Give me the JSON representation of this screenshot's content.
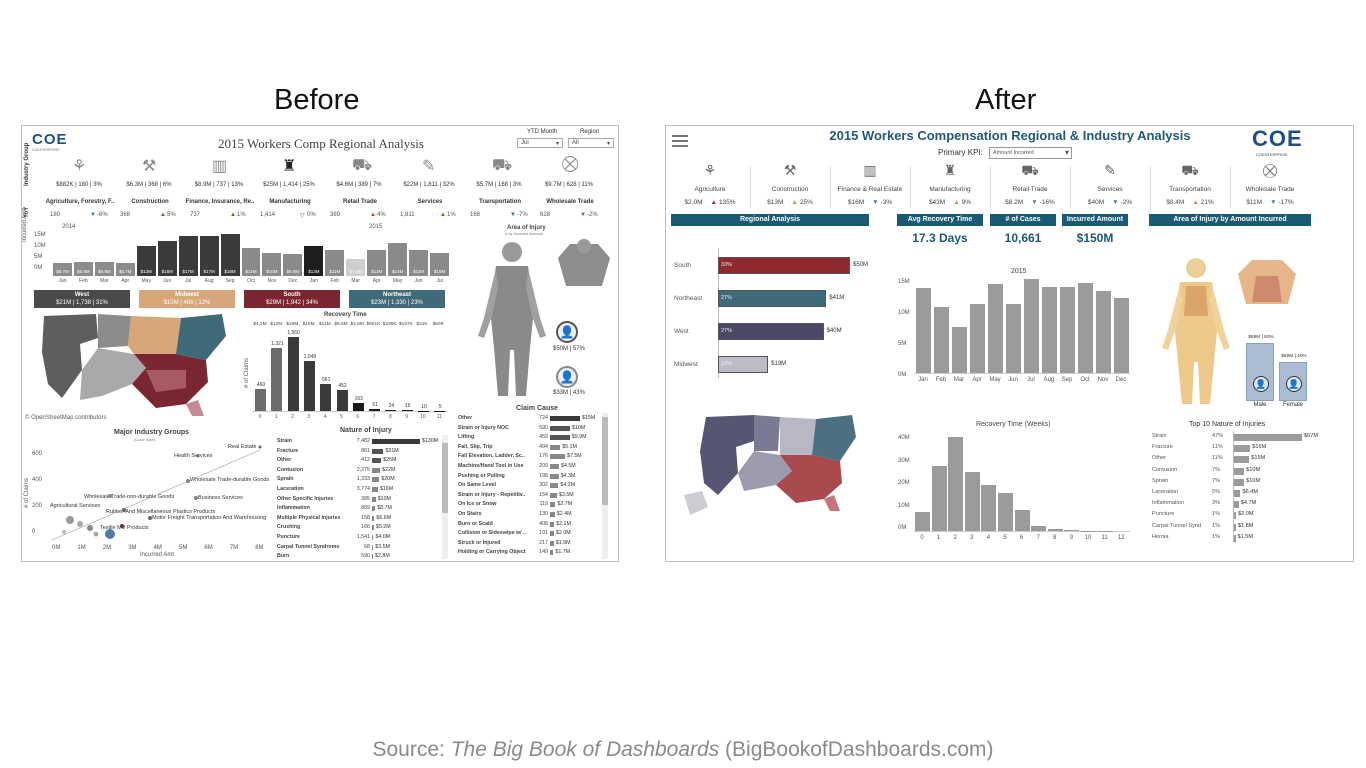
{
  "headings": {
    "before": "Before",
    "after": "After"
  },
  "source": {
    "prefix": "Source: ",
    "book": "The Big Book of Dashboards",
    "suffix": " (BigBookofDashboards.com)"
  },
  "colors": {
    "west": "#4a4a4a",
    "midwest": "#d7a77a",
    "south": "#7a2732",
    "northeast": "#3f6a7a",
    "accent": "#1a5a75"
  },
  "before": {
    "logo": "COE",
    "logo_sub": "COENTERPRISE",
    "title": "2015 Workers Comp Regional Analysis",
    "ytd_label": "YTD Month",
    "ytd_value": "Jul",
    "region_label": "Region",
    "region_value": "All",
    "side_label_1": "Industry Group",
    "side_label_2": "YoY",
    "industries": [
      {
        "icon": "⚘",
        "stat": "$882K | 180 | 3%",
        "name": "Agriculture, Forestry, F..",
        "prev": "180",
        "arrow": "▼",
        "pct": "-6%"
      },
      {
        "icon": "⚒",
        "stat": "$6.3M | 368 | 6%",
        "name": "Construction",
        "prev": "368",
        "arrow": "▲",
        "pct": "5%"
      },
      {
        "icon": "▥",
        "stat": "$8.9M | 737 | 13%",
        "name": "Finance, Insurance, Re..",
        "prev": "737",
        "arrow": "▲",
        "pct": "1%"
      },
      {
        "icon": "♜",
        "stat": "$25M | 1,414 | 25%",
        "name": "Manufacturing",
        "prev": "1,414",
        "arrow": "▽",
        "pct": "0%"
      },
      {
        "icon": "⛟",
        "stat": "$4.6M | 389 | 7%",
        "name": "Retail Trade",
        "prev": "389",
        "arrow": "▲",
        "pct": "4%"
      },
      {
        "icon": "✎",
        "stat": "$22M | 1,811 | 32%",
        "name": "Services",
        "prev": "1,811",
        "arrow": "▲",
        "pct": "1%"
      },
      {
        "icon": "⛟",
        "stat": "$5.7M | 168 | 3%",
        "name": "Transportation",
        "prev": "168",
        "arrow": "▼",
        "pct": "-7%"
      },
      {
        "icon": "⛒",
        "stat": "$9.7M | 628 | 11%",
        "name": "Wholesale Trade",
        "prev": "628",
        "arrow": "▼",
        "pct": "-2%"
      }
    ],
    "timeline": {
      "y_ticks": [
        "15M",
        "10M",
        "5M",
        "0M"
      ],
      "ylabel": "Incurred Amt",
      "year_2014": "2014",
      "year_2015": "2015",
      "months": [
        "Jan",
        "Feb",
        "Mar",
        "Apr",
        "May",
        "Jun",
        "Jul",
        "Aug",
        "Sep",
        "Oct",
        "Nov",
        "Dec",
        "Jan",
        "Feb",
        "Mar",
        "Apr",
        "May",
        "Jun",
        "Jul"
      ],
      "values": [
        5.7,
        5.9,
        5.9,
        5.7,
        13,
        15,
        17,
        17,
        18,
        12,
        10,
        9.6,
        13,
        11,
        7.4,
        11,
        14,
        11,
        10
      ],
      "labels": [
        "$5.7M",
        "$5.9M",
        "$5.9M",
        "$5.7M",
        "$13M",
        "$15M",
        "$17M",
        "$17M",
        "$18M",
        "$12M",
        "$10M",
        "$9.6M",
        "$13M",
        "$11M",
        "$7.4M",
        "$11M",
        "$14M",
        "$11M",
        "$10M"
      ]
    },
    "regions": [
      {
        "name": "West",
        "stat": "$21M | 1,738 | 31%"
      },
      {
        "name": "Midwest",
        "stat": "$10M | 486 | 12%"
      },
      {
        "name": "South",
        "stat": "$29M | 1,942 | 34%"
      },
      {
        "name": "Northeast",
        "stat": "$23M | 1,330 | 23%"
      }
    ],
    "area_title": "Area of Injury",
    "area_sub": "# by Incurred Amount",
    "map_credit": "© OpenStreetMap contributors",
    "recovery": {
      "title": "Recovery Time",
      "top_labels": [
        "$4.2M",
        "$12M",
        "$26M",
        "$15M",
        "$11M",
        "$8.6M",
        "$4.8M",
        "$901K",
        "$336K",
        "$197K",
        "$31K",
        "$60K"
      ],
      "ylabel": "# of Claims",
      "x": [
        "0",
        "1",
        "2",
        "3",
        "4",
        "5",
        "6",
        "7",
        "8",
        "9",
        "10",
        "11"
      ],
      "values": [
        460,
        1321,
        1560,
        1049,
        561,
        452,
        163,
        51,
        24,
        16,
        10,
        5
      ],
      "labels": [
        "460",
        "1,321",
        "1,560",
        "1,049",
        "561",
        "452",
        "163",
        "51",
        "24",
        "16",
        "10",
        "5"
      ]
    },
    "gender": [
      {
        "stat": "$50M | 57%"
      },
      {
        "stat": "$33M | 43%"
      }
    ],
    "scatter": {
      "title": "Major Industry Groups",
      "subtitle": "(Color Size)",
      "ylabel": "# of Claims",
      "xlabel": "Incurred Amt",
      "y_ticks": [
        "600",
        "400",
        "200",
        "0"
      ],
      "x_ticks": [
        "0M",
        "1M",
        "2M",
        "3M",
        "4M",
        "5M",
        "6M",
        "7M",
        "8M"
      ],
      "labels": [
        "Real Estate",
        "Health Services",
        "Wholesale Trade-durable Goods",
        "Wholesale Trade-non-durable Goods",
        "Business Services",
        "Agricultural Services",
        "Rubber And Miscellaneous Plastics Products",
        "Motor Freight Transportation And Warehousing",
        "Textile Mill Products"
      ]
    },
    "nature": {
      "title": "Nature of Injury",
      "rows": [
        {
          "name": "Strain",
          "count": "7,482",
          "amt": "$130M",
          "v": 130
        },
        {
          "name": "Fracture",
          "count": "861",
          "amt": "$31M",
          "v": 31
        },
        {
          "name": "Other",
          "count": "412",
          "amt": "$25M",
          "v": 25
        },
        {
          "name": "Contusion",
          "count": "2,275",
          "amt": "$22M",
          "v": 22
        },
        {
          "name": "Sprain",
          "count": "1,333",
          "amt": "$20M",
          "v": 20
        },
        {
          "name": "Laceration",
          "count": "3,774",
          "amt": "$16M",
          "v": 16
        },
        {
          "name": "Other Specific Injuries",
          "count": "385",
          "amt": "$10M",
          "v": 10
        },
        {
          "name": "Inflammation",
          "count": "869",
          "amt": "$8.7M",
          "v": 8.7
        },
        {
          "name": "Multiple Physical Injuries",
          "count": "158",
          "amt": "$6.6M",
          "v": 6.6
        },
        {
          "name": "Crushing",
          "count": "166",
          "amt": "$5.2M",
          "v": 5.2
        },
        {
          "name": "Puncture",
          "count": "1,541",
          "amt": "$4.0M",
          "v": 4.0
        },
        {
          "name": "Carpal Tunnel Syndrome",
          "count": "68",
          "amt": "$3.5M",
          "v": 3.5
        },
        {
          "name": "Burn",
          "count": "590",
          "amt": "$2.8M",
          "v": 2.8
        }
      ]
    },
    "claim": {
      "title": "Claim Cause",
      "rows": [
        {
          "name": "Other",
          "count": "724",
          "amt": "$15M",
          "v": 15
        },
        {
          "name": "Strain or Injury NOC",
          "count": "590",
          "amt": "$10M",
          "v": 10
        },
        {
          "name": "Lifting",
          "count": "459",
          "amt": "$9.9M",
          "v": 9.9
        },
        {
          "name": "Fall, Slip, Trip",
          "count": "494",
          "amt": "$5.1M",
          "v": 5.1
        },
        {
          "name": "Fall Elevation, Ladder, Sc..",
          "count": "176",
          "amt": "$7.5M",
          "v": 7.5
        },
        {
          "name": "Machine/Hand Tool in Use",
          "count": "209",
          "amt": "$4.5M",
          "v": 4.5
        },
        {
          "name": "Pushing or Pulling",
          "count": "198",
          "amt": "$4.3M",
          "v": 4.3
        },
        {
          "name": "On Same Level",
          "count": "302",
          "amt": "$4.2M",
          "v": 4.2
        },
        {
          "name": "Strain or Injury - Repetitiv..",
          "count": "154",
          "amt": "$3.5M",
          "v": 3.5
        },
        {
          "name": "On Ice or Snow",
          "count": "119",
          "amt": "$2.7M",
          "v": 2.7
        },
        {
          "name": "On Stairs",
          "count": "130",
          "amt": "$2.4M",
          "v": 2.4
        },
        {
          "name": "Burn or Scald",
          "count": "408",
          "amt": "$2.1M",
          "v": 2.1
        },
        {
          "name": "Collision or Sideswipe w/ ..",
          "count": "101",
          "amt": "$2.0M",
          "v": 2.0
        },
        {
          "name": "Struck or Injured",
          "count": "217",
          "amt": "$1.9M",
          "v": 1.9
        },
        {
          "name": "Holding or Carrying Object",
          "count": "149",
          "amt": "$1.7M",
          "v": 1.7
        }
      ]
    }
  },
  "after": {
    "title": "2015 Workers Compensation Regional & Industry Analysis",
    "kpi_label": "Primary KPI:",
    "kpi_value": "Amount Incurred",
    "logo": "COE",
    "logo_sub": "COENTERPRISE",
    "industries": [
      {
        "icon": "⚘",
        "name": "Agriculture",
        "amt": "$2.0M",
        "arrow": "▲",
        "pct": "135%",
        "tone": "r"
      },
      {
        "icon": "⚒",
        "name": "Construction",
        "amt": "$13M",
        "arrow": "▲",
        "pct": "25%",
        "tone": "o"
      },
      {
        "icon": "▥",
        "name": "Finance & Real Estate",
        "amt": "$16M",
        "arrow": "▼",
        "pct": "-3%",
        "tone": "d"
      },
      {
        "icon": "♜",
        "name": "Manufacturing",
        "amt": "$43M",
        "arrow": "▲",
        "pct": "9%",
        "tone": "o"
      },
      {
        "icon": "⛟",
        "name": "Retail Trade",
        "amt": "$8.2M",
        "arrow": "▼",
        "pct": "-16%",
        "tone": "d"
      },
      {
        "icon": "✎",
        "name": "Services",
        "amt": "$40M",
        "arrow": "▼",
        "pct": "-2%",
        "tone": "d"
      },
      {
        "icon": "⛟",
        "name": "Transportation",
        "amt": "$8.4M",
        "arrow": "▲",
        "pct": "21%",
        "tone": "o"
      },
      {
        "icon": "⛒",
        "name": "Wholesale Trade",
        "amt": "$11M",
        "arrow": "▼",
        "pct": "-17%",
        "tone": "d"
      }
    ],
    "heads": {
      "regional": "Regional Analysis",
      "avg": "Avg Recovery Time",
      "cases": "# of Cases",
      "incurred": "Incurred Amount",
      "area": "Area of Injury by Amount Incurred"
    },
    "kpis": {
      "avg": "17.3 Days",
      "cases": "10,661",
      "incurred": "$150M"
    },
    "regional": [
      {
        "name": "South",
        "pct": "33%",
        "amt": "$50M",
        "v": 50,
        "color": "#8e2a2e"
      },
      {
        "name": "Northeast",
        "pct": "27%",
        "amt": "$41M",
        "v": 41,
        "color": "#3f6a7a"
      },
      {
        "name": "West",
        "pct": "27%",
        "amt": "$40M",
        "v": 40,
        "color": "#4a4a68"
      },
      {
        "name": "Midwest",
        "pct": "13%",
        "amt": "$19M",
        "v": 19,
        "color": "#bcbcc4"
      }
    ],
    "monthly": {
      "title": "2015",
      "y_ticks": [
        "15M",
        "10M",
        "5M",
        "0M"
      ],
      "months": [
        "Jan",
        "Feb",
        "Mar",
        "Apr",
        "May",
        "Jun",
        "Jul",
        "Aug",
        "Sep",
        "Oct",
        "Nov",
        "Dec"
      ],
      "values": [
        13.5,
        10.5,
        7.3,
        11,
        14.2,
        11,
        15,
        13.7,
        13.7,
        14.3,
        13.1,
        12
      ]
    },
    "recovery": {
      "title": "Recovery Time (Weeks)",
      "y_ticks": [
        "40M",
        "30M",
        "20M",
        "10M",
        "0M"
      ],
      "x": [
        "0",
        "1",
        "2",
        "3",
        "4",
        "5",
        "6",
        "7",
        "8",
        "9",
        "10",
        "11",
        "12"
      ],
      "values": [
        8.5,
        28.5,
        41,
        26,
        20,
        16.5,
        9,
        2,
        1,
        0.4,
        0.1,
        0.05,
        0.03
      ]
    },
    "gender": [
      {
        "name": "Male",
        "stat": "$89M | 60%",
        "v": 60
      },
      {
        "name": "Female",
        "stat": "$60M | 40%",
        "v": 40
      }
    ],
    "top10": {
      "title": "Top 10 Nature of Injuries",
      "rows": [
        {
          "name": "Strain",
          "pct": "47%",
          "amt": "$67M",
          "v": 67
        },
        {
          "name": "Fracture",
          "pct": "11%",
          "amt": "$16M",
          "v": 16
        },
        {
          "name": "Other",
          "pct": "11%",
          "amt": "$15M",
          "v": 15
        },
        {
          "name": "Contusion",
          "pct": "7%",
          "amt": "$10M",
          "v": 10
        },
        {
          "name": "Sprain",
          "pct": "7%",
          "amt": "$10M",
          "v": 10
        },
        {
          "name": "Laceration",
          "pct": "5%",
          "amt": "$6.4M",
          "v": 6.4
        },
        {
          "name": "Inflammation",
          "pct": "3%",
          "amt": "$4.7M",
          "v": 4.7
        },
        {
          "name": "Puncture",
          "pct": "1%",
          "amt": "$2.0M",
          "v": 2.0
        },
        {
          "name": "Carpal Tunnel Synd",
          "pct": "1%",
          "amt": "$1.8M",
          "v": 1.8
        },
        {
          "name": "Hernia",
          "pct": "1%",
          "amt": "$1.5M",
          "v": 1.5
        }
      ]
    }
  }
}
